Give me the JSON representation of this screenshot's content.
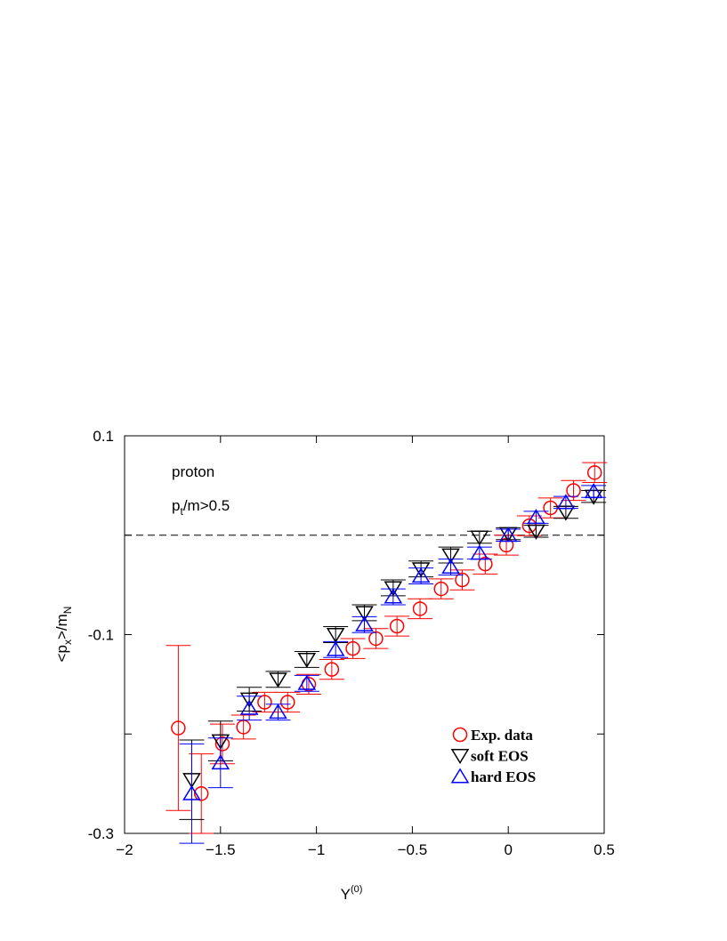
{
  "chart_data": {
    "type": "scatter",
    "annotations": [
      "proton",
      {
        "main": "p",
        "sub": "t",
        "rest": "/m>0.5"
      }
    ],
    "x_label": {
      "main": "Y",
      "sup": "(0)"
    },
    "y_label": {
      "pre": "<p",
      "sub1": "x",
      "mid": ">/m",
      "sub2": "N"
    },
    "xlim": [
      -2,
      0.5
    ],
    "ylim": [
      -0.3,
      0.1
    ],
    "xticks": [
      {
        "value": -2,
        "label": "−2"
      },
      {
        "value": -1.5,
        "label": "−1.5"
      },
      {
        "value": -1,
        "label": "−1"
      },
      {
        "value": -0.5,
        "label": "−0.5"
      },
      0,
      0.5
    ],
    "yticks": [
      -0.3,
      -0.1,
      0.1
    ],
    "yminor": [
      -0.2,
      0
    ],
    "reference_line": 0,
    "series": [
      {
        "name": "Exp. data",
        "color": "#ff0000",
        "marker": "circle",
        "x": [
          -1.72,
          -1.6,
          -1.49,
          -1.38,
          -1.27,
          -1.15,
          -1.04,
          -0.92,
          -0.81,
          -0.69,
          -0.58,
          -0.46,
          -0.35,
          -0.24,
          -0.12,
          -0.01,
          0.11,
          0.22,
          0.34,
          0.45
        ],
        "values": [
          -0.194,
          -0.26,
          -0.21,
          -0.193,
          -0.168,
          -0.168,
          -0.15,
          -0.135,
          -0.114,
          -0.104,
          -0.0915,
          -0.074,
          -0.054,
          -0.045,
          -0.029,
          -0.01,
          0.0095,
          0.0275,
          0.045,
          0.063
        ],
        "errors": [
          0.083,
          0.04,
          0.02,
          0.012,
          0.01,
          0.01,
          0.01,
          0.01,
          0.01,
          0.01,
          0.01,
          0.01,
          0.01,
          0.01,
          0.01,
          0.01,
          0.01,
          0.01,
          0.01,
          0.01
        ]
      },
      {
        "name": "soft EOS",
        "color": "#000000",
        "marker": "triangle-down",
        "x": [
          -1.65,
          -1.5,
          -1.35,
          -1.2,
          -1.05,
          -0.9,
          -0.75,
          -0.6,
          -0.455,
          -0.3,
          -0.15,
          0,
          0.145,
          0.3,
          0.445
        ],
        "values": [
          -0.246,
          -0.207,
          -0.165,
          -0.145,
          -0.125,
          -0.1,
          -0.078,
          -0.053,
          -0.034,
          -0.02,
          -0.002,
          0.0015,
          0.004,
          0.023,
          0.039
        ],
        "errors": [
          0.04,
          0.02,
          0.012,
          0.008,
          0.008,
          0.008,
          0.008,
          0.008,
          0.008,
          0.008,
          0.006,
          0.006,
          0.006,
          0.006,
          0.006
        ]
      },
      {
        "name": "hard EOS",
        "color": "#0000ff",
        "marker": "triangle-up",
        "x": [
          -1.65,
          -1.5,
          -1.35,
          -1.2,
          -1.05,
          -0.9,
          -0.75,
          -0.6,
          -0.455,
          -0.3,
          -0.15,
          0,
          0.145,
          0.3,
          0.445
        ],
        "values": [
          -0.26,
          -0.229,
          -0.174,
          -0.178,
          -0.149,
          -0.115,
          -0.09,
          -0.062,
          -0.041,
          -0.032,
          -0.018,
          0,
          0.018,
          0.033,
          0.044
        ],
        "errors": [
          0.05,
          0.025,
          0.012,
          0.008,
          0.008,
          0.008,
          0.008,
          0.008,
          0.008,
          0.008,
          0.006,
          0.006,
          0.006,
          0.006,
          0.006
        ]
      }
    ]
  }
}
